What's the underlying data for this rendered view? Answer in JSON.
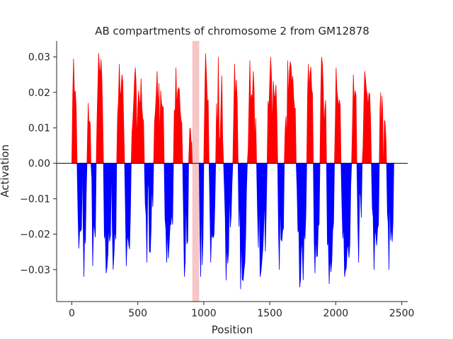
{
  "chart_data": {
    "type": "bar",
    "title": "AB compartments of chromosome 2 from GM12878",
    "xlabel": "Position",
    "ylabel": "Activation",
    "xlim": [
      -115,
      2545
    ],
    "ylim": [
      -0.039,
      0.0345
    ],
    "xticks": [
      0,
      500,
      1000,
      1500,
      2000,
      2500
    ],
    "yticks": [
      -0.03,
      -0.02,
      -0.01,
      0.0,
      0.01,
      0.02,
      0.03
    ],
    "ytick_labels": [
      "−0.03",
      "−0.02",
      "−0.01",
      "0.00",
      "0.01",
      "0.02",
      "0.03"
    ],
    "grid": false,
    "positive_color": "#ff0000",
    "negative_color": "#0000ff",
    "highlight_region": {
      "x_start": 913,
      "x_end": 965,
      "color": "#f7c6c6"
    },
    "segments": [
      {
        "x_start": 0,
        "x_end": 40,
        "sign": 1,
        "peak": 0.0295
      },
      {
        "x_start": 40,
        "x_end": 80,
        "sign": -1,
        "peak": 0.024
      },
      {
        "x_start": 80,
        "x_end": 115,
        "sign": -1,
        "peak": 0.032
      },
      {
        "x_start": 115,
        "x_end": 145,
        "sign": 1,
        "peak": 0.017
      },
      {
        "x_start": 145,
        "x_end": 185,
        "sign": -1,
        "peak": 0.029
      },
      {
        "x_start": 185,
        "x_end": 240,
        "sign": 1,
        "peak": 0.031
      },
      {
        "x_start": 240,
        "x_end": 300,
        "sign": -1,
        "peak": 0.031
      },
      {
        "x_start": 300,
        "x_end": 340,
        "sign": -1,
        "peak": 0.03
      },
      {
        "x_start": 340,
        "x_end": 400,
        "sign": 1,
        "peak": 0.028
      },
      {
        "x_start": 400,
        "x_end": 450,
        "sign": -1,
        "peak": 0.029
      },
      {
        "x_start": 450,
        "x_end": 550,
        "sign": 1,
        "peak": 0.027
      },
      {
        "x_start": 550,
        "x_end": 620,
        "sign": -1,
        "peak": 0.028
      },
      {
        "x_start": 620,
        "x_end": 700,
        "sign": 1,
        "peak": 0.026
      },
      {
        "x_start": 700,
        "x_end": 770,
        "sign": -1,
        "peak": 0.028
      },
      {
        "x_start": 770,
        "x_end": 840,
        "sign": 1,
        "peak": 0.027
      },
      {
        "x_start": 840,
        "x_end": 885,
        "sign": -1,
        "peak": 0.032
      },
      {
        "x_start": 885,
        "x_end": 913,
        "sign": 1,
        "peak": 0.01
      },
      {
        "x_start": 965,
        "x_end": 1000,
        "sign": -1,
        "peak": 0.032
      },
      {
        "x_start": 1000,
        "x_end": 1040,
        "sign": 1,
        "peak": 0.031
      },
      {
        "x_start": 1040,
        "x_end": 1090,
        "sign": -1,
        "peak": 0.028
      },
      {
        "x_start": 1090,
        "x_end": 1150,
        "sign": 1,
        "peak": 0.03
      },
      {
        "x_start": 1150,
        "x_end": 1220,
        "sign": -1,
        "peak": 0.033
      },
      {
        "x_start": 1220,
        "x_end": 1260,
        "sign": 1,
        "peak": 0.028
      },
      {
        "x_start": 1260,
        "x_end": 1330,
        "sign": -1,
        "peak": 0.0355
      },
      {
        "x_start": 1330,
        "x_end": 1400,
        "sign": 1,
        "peak": 0.029
      },
      {
        "x_start": 1400,
        "x_end": 1480,
        "sign": -1,
        "peak": 0.032
      },
      {
        "x_start": 1480,
        "x_end": 1560,
        "sign": 1,
        "peak": 0.03
      },
      {
        "x_start": 1560,
        "x_end": 1610,
        "sign": -1,
        "peak": 0.03
      },
      {
        "x_start": 1610,
        "x_end": 1700,
        "sign": 1,
        "peak": 0.029
      },
      {
        "x_start": 1700,
        "x_end": 1780,
        "sign": -1,
        "peak": 0.035
      },
      {
        "x_start": 1780,
        "x_end": 1830,
        "sign": 1,
        "peak": 0.028
      },
      {
        "x_start": 1830,
        "x_end": 1880,
        "sign": -1,
        "peak": 0.031
      },
      {
        "x_start": 1880,
        "x_end": 1930,
        "sign": 1,
        "peak": 0.03
      },
      {
        "x_start": 1930,
        "x_end": 1990,
        "sign": -1,
        "peak": 0.034
      },
      {
        "x_start": 1990,
        "x_end": 2040,
        "sign": 1,
        "peak": 0.027
      },
      {
        "x_start": 2040,
        "x_end": 2120,
        "sign": -1,
        "peak": 0.032
      },
      {
        "x_start": 2120,
        "x_end": 2160,
        "sign": 1,
        "peak": 0.025
      },
      {
        "x_start": 2160,
        "x_end": 2200,
        "sign": -1,
        "peak": 0.028
      },
      {
        "x_start": 2200,
        "x_end": 2270,
        "sign": 1,
        "peak": 0.026
      },
      {
        "x_start": 2270,
        "x_end": 2330,
        "sign": -1,
        "peak": 0.03
      },
      {
        "x_start": 2330,
        "x_end": 2360,
        "sign": 1,
        "peak": 0.02
      },
      {
        "x_start": 2360,
        "x_end": 2385,
        "sign": 1,
        "peak": 0.012
      },
      {
        "x_start": 2385,
        "x_end": 2440,
        "sign": -1,
        "peak": 0.03
      }
    ]
  }
}
